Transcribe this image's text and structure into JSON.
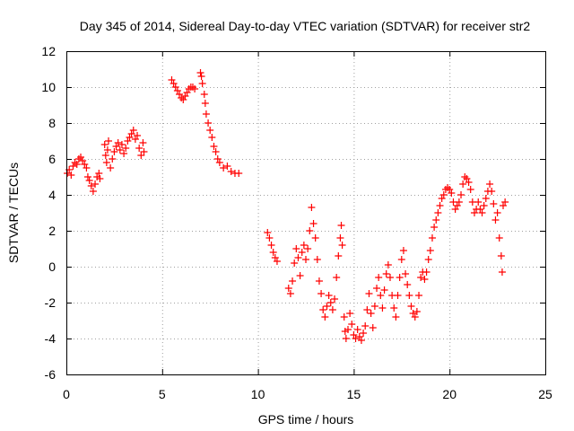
{
  "chart_data": {
    "type": "scatter",
    "title": "Day 345 of 2014, Sidereal Day-to-day VTEC variation (SDTVAR) for receiver str2",
    "xlabel": "GPS time / hours",
    "ylabel": "SDTVAR / TECUs",
    "xlim": [
      0,
      25
    ],
    "ylim": [
      -6,
      12
    ],
    "xticks": [
      0,
      5,
      10,
      15,
      20,
      25
    ],
    "yticks": [
      -6,
      -4,
      -2,
      0,
      2,
      4,
      6,
      8,
      10,
      12
    ],
    "grid": true,
    "marker": "+",
    "color": "#ff0000",
    "series": [
      {
        "name": "str2",
        "points": [
          [
            0.05,
            5.2
          ],
          [
            0.15,
            5.4
          ],
          [
            0.25,
            5.1
          ],
          [
            0.35,
            5.6
          ],
          [
            0.45,
            5.8
          ],
          [
            0.55,
            5.7
          ],
          [
            0.65,
            6.0
          ],
          [
            0.75,
            6.1
          ],
          [
            0.85,
            5.9
          ],
          [
            0.95,
            5.7
          ],
          [
            1.05,
            5.5
          ],
          [
            1.12,
            5.0
          ],
          [
            1.2,
            4.8
          ],
          [
            1.3,
            4.5
          ],
          [
            1.4,
            4.2
          ],
          [
            1.5,
            4.6
          ],
          [
            1.6,
            5.0
          ],
          [
            1.7,
            5.2
          ],
          [
            1.75,
            4.9
          ],
          [
            2.0,
            6.8
          ],
          [
            2.05,
            6.2
          ],
          [
            2.1,
            5.8
          ],
          [
            2.15,
            6.5
          ],
          [
            2.2,
            7.0
          ],
          [
            2.3,
            5.5
          ],
          [
            2.4,
            6.0
          ],
          [
            2.5,
            6.4
          ],
          [
            2.6,
            6.7
          ],
          [
            2.7,
            6.9
          ],
          [
            2.8,
            6.5
          ],
          [
            2.9,
            6.8
          ],
          [
            3.0,
            6.3
          ],
          [
            3.1,
            6.6
          ],
          [
            3.2,
            7.0
          ],
          [
            3.3,
            7.2
          ],
          [
            3.4,
            7.4
          ],
          [
            3.5,
            7.6
          ],
          [
            3.6,
            7.1
          ],
          [
            3.7,
            7.3
          ],
          [
            3.8,
            6.6
          ],
          [
            3.9,
            6.2
          ],
          [
            4.0,
            6.9
          ],
          [
            4.05,
            6.4
          ],
          [
            5.5,
            10.4
          ],
          [
            5.6,
            10.2
          ],
          [
            5.7,
            10.0
          ],
          [
            5.8,
            9.8
          ],
          [
            5.9,
            9.6
          ],
          [
            6.0,
            9.4
          ],
          [
            6.1,
            9.3
          ],
          [
            6.2,
            9.5
          ],
          [
            6.3,
            9.7
          ],
          [
            6.4,
            9.9
          ],
          [
            6.5,
            10.0
          ],
          [
            6.6,
            10.0
          ],
          [
            6.7,
            9.9
          ],
          [
            7.0,
            10.8
          ],
          [
            7.05,
            10.6
          ],
          [
            7.1,
            10.2
          ],
          [
            7.2,
            9.6
          ],
          [
            7.25,
            9.1
          ],
          [
            7.3,
            8.5
          ],
          [
            7.4,
            8.0
          ],
          [
            7.5,
            7.6
          ],
          [
            7.6,
            7.2
          ],
          [
            7.7,
            6.7
          ],
          [
            7.8,
            6.4
          ],
          [
            7.9,
            6.0
          ],
          [
            8.0,
            5.8
          ],
          [
            8.2,
            5.5
          ],
          [
            8.4,
            5.6
          ],
          [
            8.6,
            5.3
          ],
          [
            8.8,
            5.2
          ],
          [
            9.0,
            5.2
          ],
          [
            10.5,
            1.9
          ],
          [
            10.6,
            1.6
          ],
          [
            10.7,
            1.2
          ],
          [
            10.8,
            0.8
          ],
          [
            10.9,
            0.5
          ],
          [
            11.0,
            0.3
          ],
          [
            11.6,
            -1.2
          ],
          [
            11.7,
            -1.5
          ],
          [
            11.8,
            -0.8
          ],
          [
            11.9,
            0.2
          ],
          [
            12.0,
            1.0
          ],
          [
            12.1,
            0.5
          ],
          [
            12.2,
            -0.5
          ],
          [
            12.3,
            0.8
          ],
          [
            12.4,
            1.2
          ],
          [
            12.5,
            0.4
          ],
          [
            12.6,
            1.0
          ],
          [
            12.7,
            2.0
          ],
          [
            12.8,
            3.3
          ],
          [
            12.9,
            2.4
          ],
          [
            13.0,
            1.6
          ],
          [
            13.1,
            0.4
          ],
          [
            13.2,
            -0.8
          ],
          [
            13.3,
            -1.5
          ],
          [
            13.4,
            -2.4
          ],
          [
            13.5,
            -2.8
          ],
          [
            13.6,
            -2.2
          ],
          [
            13.7,
            -1.6
          ],
          [
            13.8,
            -2.0
          ],
          [
            13.9,
            -2.4
          ],
          [
            14.0,
            -1.8
          ],
          [
            14.1,
            -0.6
          ],
          [
            14.2,
            0.6
          ],
          [
            14.3,
            1.6
          ],
          [
            14.35,
            2.3
          ],
          [
            14.4,
            1.2
          ],
          [
            14.5,
            -2.8
          ],
          [
            14.55,
            -3.6
          ],
          [
            14.6,
            -4.0
          ],
          [
            14.7,
            -3.5
          ],
          [
            14.8,
            -2.6
          ],
          [
            14.9,
            -3.2
          ],
          [
            15.0,
            -3.8
          ],
          [
            15.1,
            -4.0
          ],
          [
            15.2,
            -3.5
          ],
          [
            15.3,
            -3.9
          ],
          [
            15.4,
            -4.1
          ],
          [
            15.5,
            -3.7
          ],
          [
            15.6,
            -3.3
          ],
          [
            15.7,
            -2.4
          ],
          [
            15.8,
            -1.5
          ],
          [
            15.9,
            -2.6
          ],
          [
            16.0,
            -3.4
          ],
          [
            16.1,
            -2.2
          ],
          [
            16.2,
            -1.2
          ],
          [
            16.3,
            -0.6
          ],
          [
            16.4,
            -1.6
          ],
          [
            16.5,
            -2.3
          ],
          [
            16.6,
            -1.3
          ],
          [
            16.7,
            -0.4
          ],
          [
            16.8,
            0.1
          ],
          [
            16.9,
            -0.6
          ],
          [
            17.0,
            -1.6
          ],
          [
            17.1,
            -2.3
          ],
          [
            17.2,
            -2.8
          ],
          [
            17.3,
            -1.6
          ],
          [
            17.4,
            -0.6
          ],
          [
            17.5,
            0.4
          ],
          [
            17.6,
            0.9
          ],
          [
            17.7,
            -0.4
          ],
          [
            17.8,
            -1.0
          ],
          [
            17.9,
            -1.6
          ],
          [
            18.0,
            -2.2
          ],
          [
            18.1,
            -2.6
          ],
          [
            18.2,
            -2.8
          ],
          [
            18.3,
            -2.5
          ],
          [
            18.4,
            -1.6
          ],
          [
            18.5,
            -0.6
          ],
          [
            18.6,
            -0.3
          ],
          [
            18.7,
            -0.7
          ],
          [
            18.8,
            -0.3
          ],
          [
            18.9,
            0.4
          ],
          [
            19.0,
            0.9
          ],
          [
            19.1,
            1.6
          ],
          [
            19.2,
            2.2
          ],
          [
            19.3,
            2.6
          ],
          [
            19.4,
            3.0
          ],
          [
            19.5,
            3.4
          ],
          [
            19.6,
            3.8
          ],
          [
            19.7,
            4.0
          ],
          [
            19.8,
            4.3
          ],
          [
            19.9,
            4.4
          ],
          [
            20.0,
            4.3
          ],
          [
            20.1,
            4.1
          ],
          [
            20.2,
            3.6
          ],
          [
            20.3,
            3.2
          ],
          [
            20.4,
            3.4
          ],
          [
            20.5,
            3.6
          ],
          [
            20.6,
            4.0
          ],
          [
            20.7,
            4.6
          ],
          [
            20.8,
            5.0
          ],
          [
            20.9,
            4.9
          ],
          [
            21.0,
            4.7
          ],
          [
            21.1,
            4.3
          ],
          [
            21.2,
            3.6
          ],
          [
            21.3,
            3.0
          ],
          [
            21.4,
            3.2
          ],
          [
            21.5,
            3.6
          ],
          [
            21.6,
            3.2
          ],
          [
            21.7,
            3.0
          ],
          [
            21.8,
            3.4
          ],
          [
            21.9,
            3.8
          ],
          [
            22.0,
            4.2
          ],
          [
            22.1,
            4.6
          ],
          [
            22.2,
            4.2
          ],
          [
            22.3,
            3.5
          ],
          [
            22.4,
            2.6
          ],
          [
            22.5,
            3.0
          ],
          [
            22.6,
            1.6
          ],
          [
            22.7,
            0.6
          ],
          [
            22.75,
            -0.3
          ],
          [
            22.8,
            3.4
          ],
          [
            22.9,
            3.6
          ]
        ]
      }
    ]
  }
}
